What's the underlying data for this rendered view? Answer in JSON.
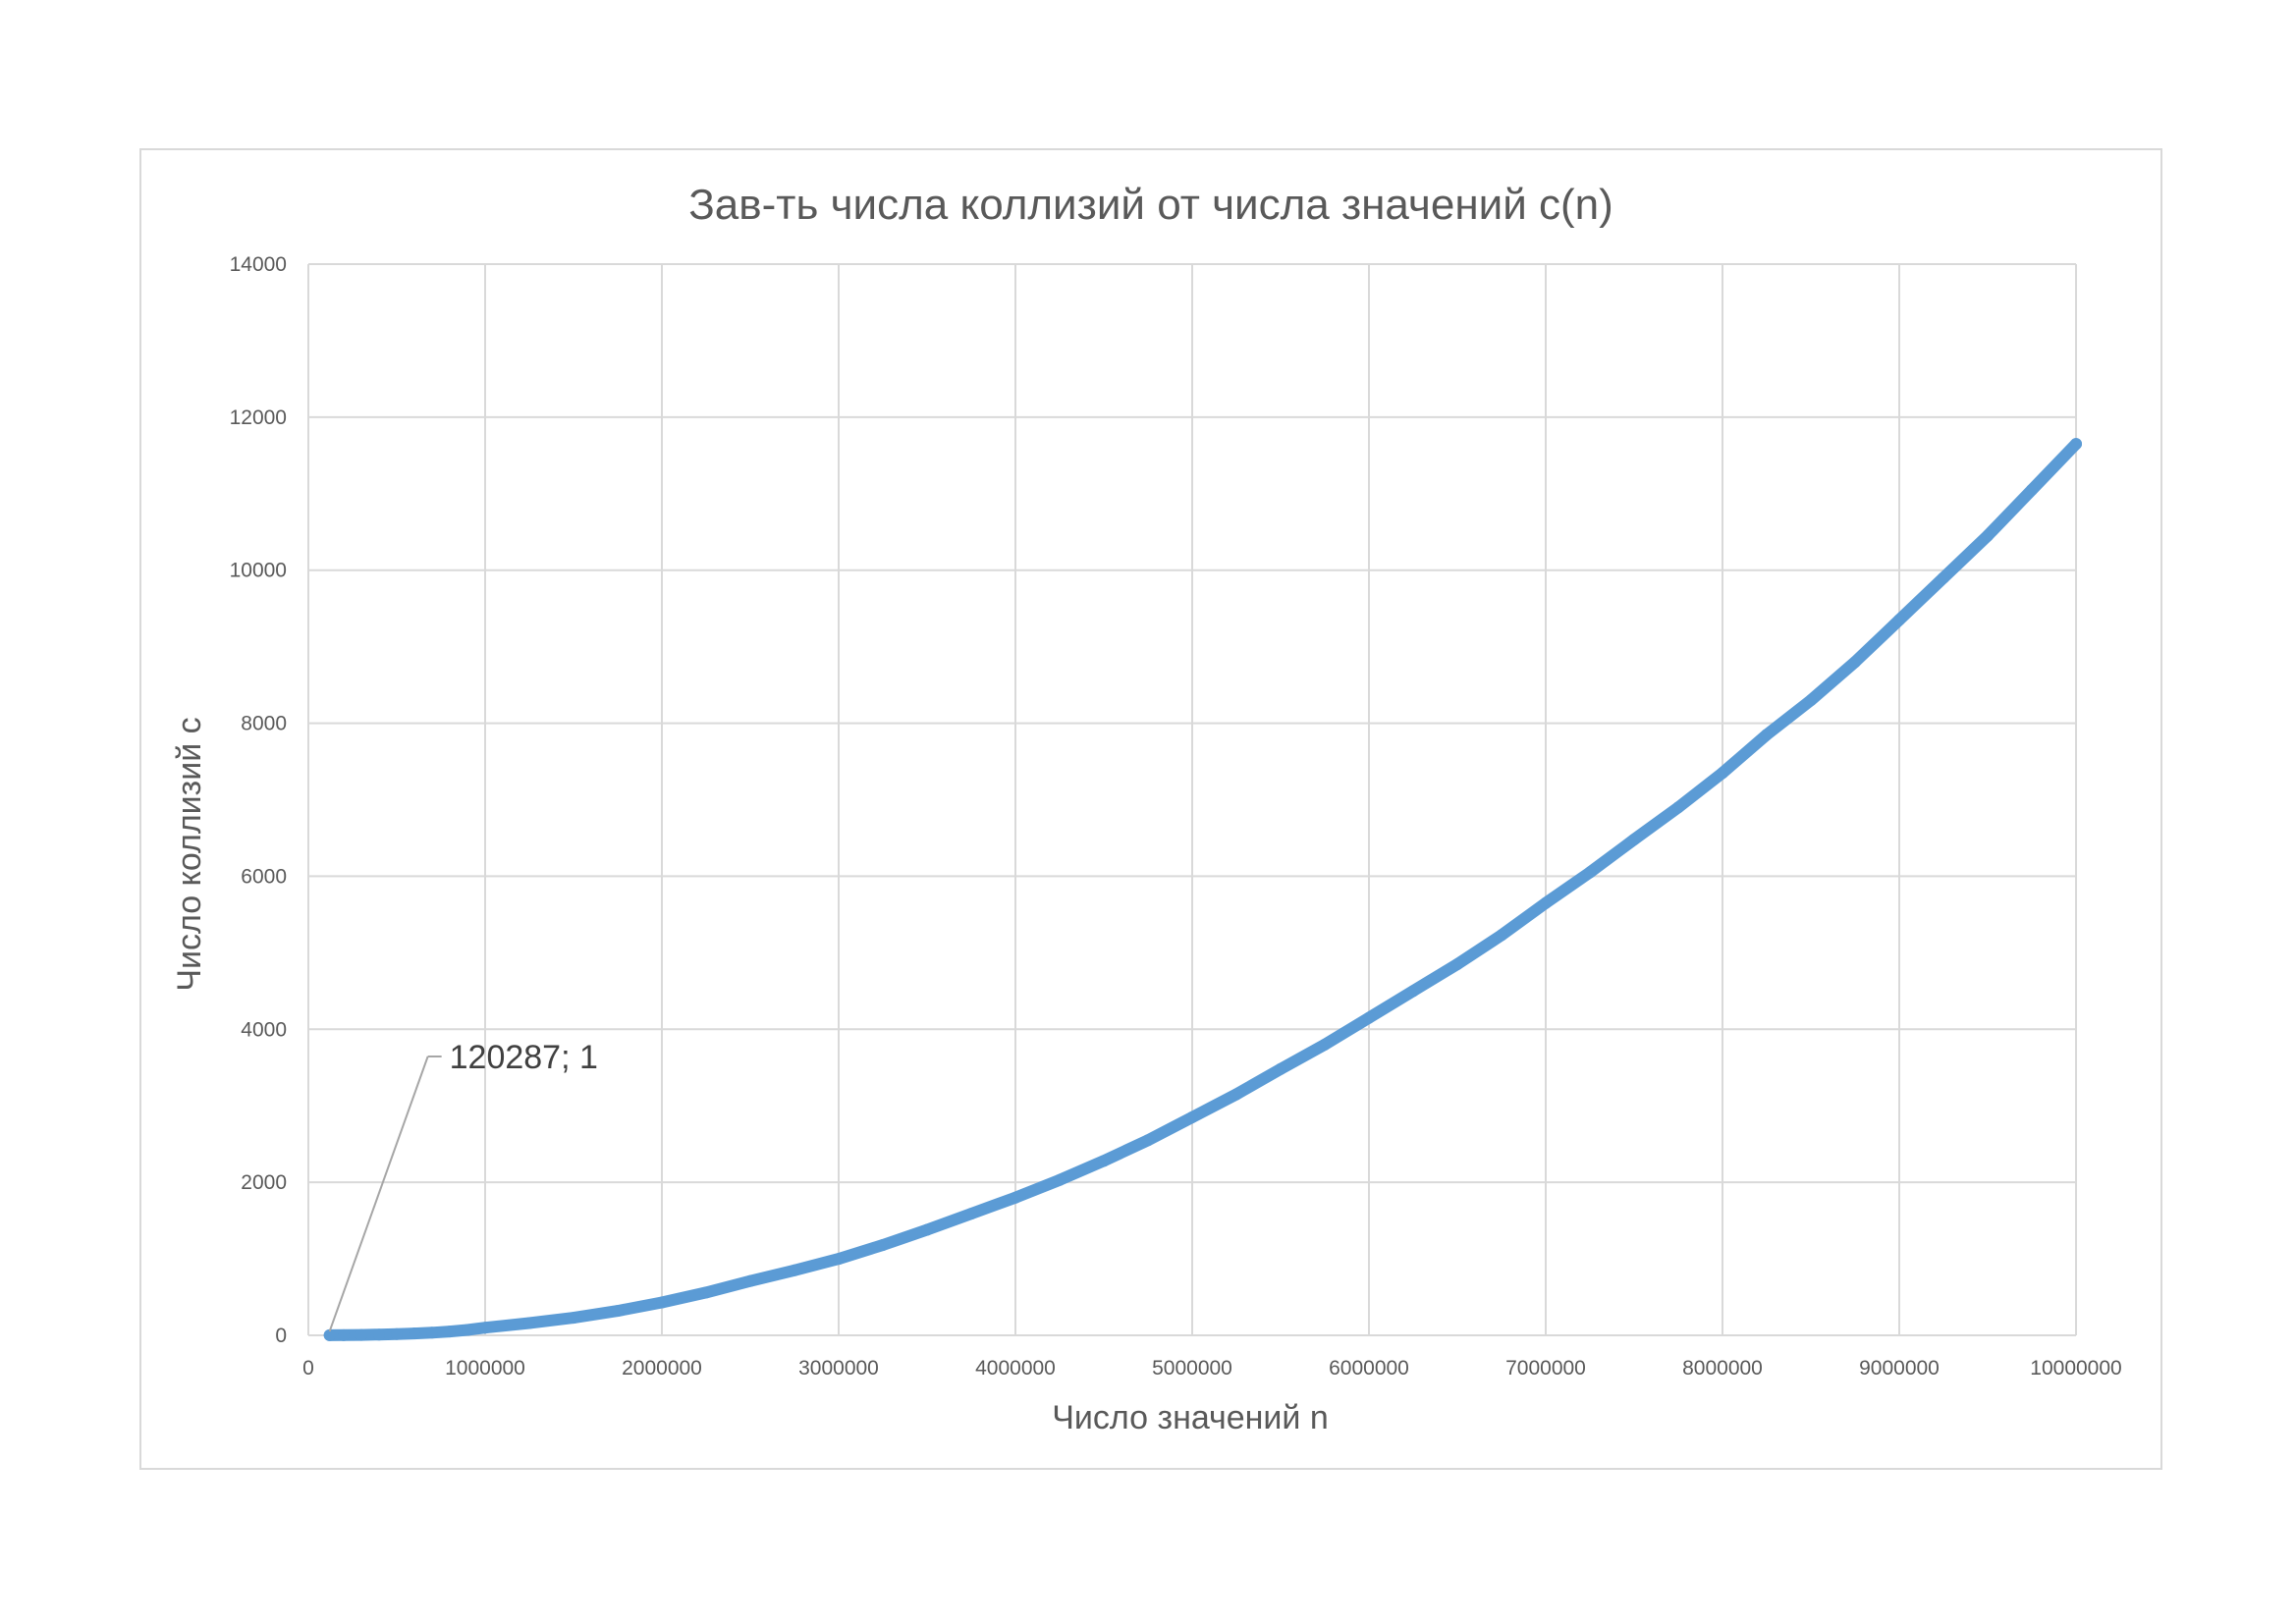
{
  "chart_data": {
    "type": "scatter",
    "title": "Зав-ть числа коллизий от числа значений c(n)",
    "xlabel": "Число значений n",
    "ylabel": "Число коллизий c",
    "xlim": [
      0,
      10000000
    ],
    "ylim": [
      0,
      14000
    ],
    "x_ticks": [
      "0",
      "1000000",
      "2000000",
      "3000000",
      "4000000",
      "5000000",
      "6000000",
      "7000000",
      "8000000",
      "9000000",
      "10000000"
    ],
    "y_ticks": [
      "0",
      "2000",
      "4000",
      "6000",
      "8000",
      "10000",
      "12000",
      "14000"
    ],
    "grid": true,
    "legend": "none",
    "series_color": "#5b9bd5",
    "series": [
      {
        "x": [
          120287,
          200000,
          300000,
          400000,
          500000,
          600000,
          700000,
          800000,
          900000,
          1000000,
          1250000,
          1500000,
          1750000,
          2000000,
          2250000,
          2500000,
          2750000,
          3000000,
          3250000,
          3500000,
          3750000,
          4000000,
          4250000,
          4500000,
          4750000,
          5000000,
          5250000,
          5500000,
          5750000,
          6000000,
          6250000,
          6500000,
          6750000,
          7000000,
          7250000,
          7500000,
          7750000,
          8000000,
          8250000,
          8500000,
          8750000,
          9000000,
          9250000,
          9500000,
          9750000,
          10000000
        ],
        "y": [
          1,
          2,
          5,
          10,
          16,
          25,
          35,
          50,
          70,
          100,
          160,
          230,
          320,
          430,
          560,
          710,
          850,
          1000,
          1180,
          1380,
          1590,
          1800,
          2030,
          2280,
          2550,
          2850,
          3150,
          3480,
          3800,
          4150,
          4500,
          4850,
          5230,
          5650,
          6050,
          6480,
          6900,
          7350,
          7850,
          8300,
          8800,
          9350,
          9900,
          10450,
          11050,
          11650
        ]
      }
    ],
    "annotations": [
      {
        "text": "120287; 1",
        "x": 120287,
        "y": 1
      }
    ]
  }
}
